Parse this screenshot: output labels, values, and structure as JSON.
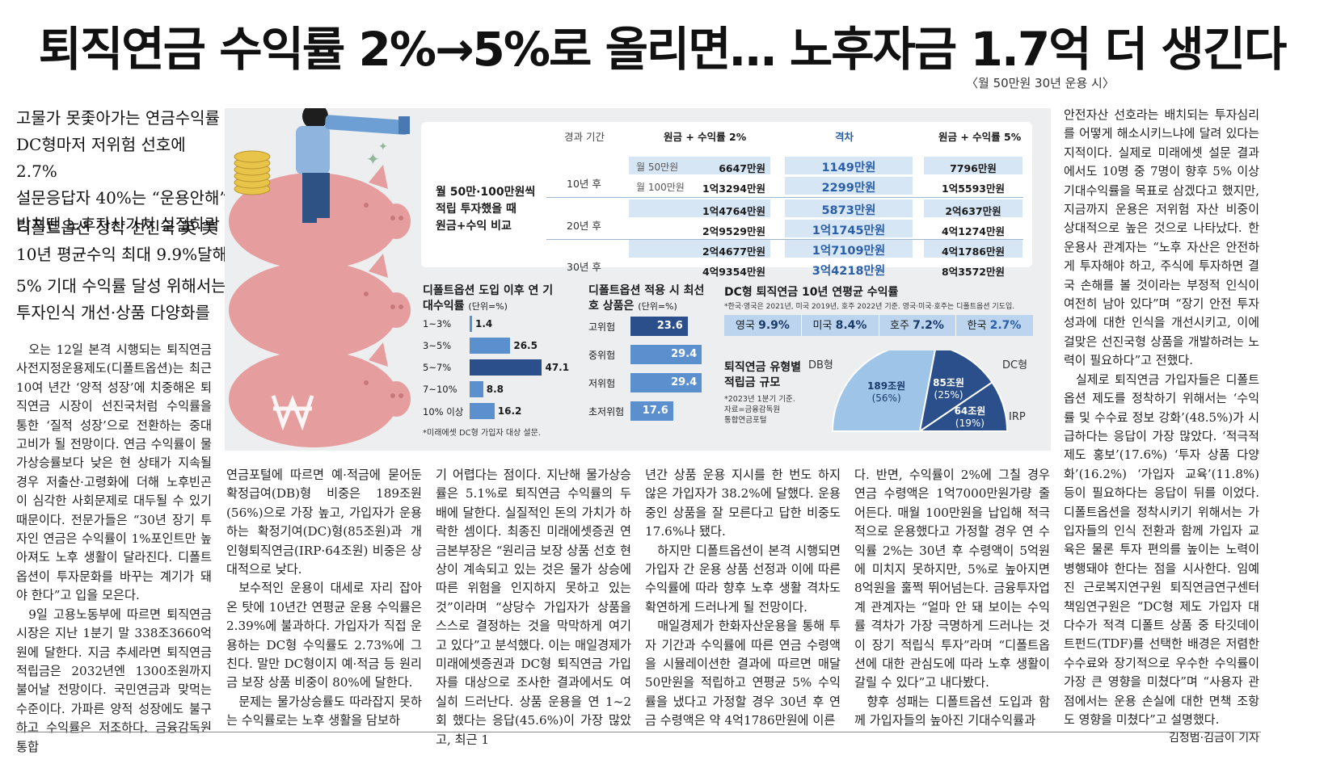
{
  "headline": "퇴직연금 수익률 2%→5%로 올리면… 노후자금 1.7억 더 생긴다",
  "subnote": "〈월 50만원 30년 운용 시〉",
  "deck": [
    "고물가 못좇아가는 연금수익률",
    "DC형마저 저위험 선호에 2.7%",
    "설문응답자 40%는 “운용안해”",
    "방치땐 노후자산가치 실질하락",
    "디폴트옵션 정착 선진국 英·美",
    "10년 평균수익 최대 9.9%달해",
    "5% 기대 수익률 달성 위해서는",
    "투자인식 개선·상품 다양화를"
  ],
  "columns": {
    "c1": [
      "오는 12일 본격 시행되는 퇴직연금 사전지정운용제도(디폴트옵션)는 최근 10여 년간 ‘양적 성장’에 치중해온 퇴직연금 시장이 선진국처럼 수익률을 통한 ‘질적 성장’으로 전환하는 중대 고비가 될 전망이다. 연금 수익률이 물가상승률보다 낮은 현 상태가 지속될 경우 저출산·고령화에 더해 노후빈곤이 심각한 사회문제로 대두될 수 있기 때문이다. 전문가들은 “30년 장기 투자인 연금은 수익률이 1%포인트만 높아져도 노후 생활이 달라진다. 디폴트옵션이 투자문화를 바꾸는 계기가 돼야 한다”고 입을 모은다.",
      "9일 고용노동부에 따르면 퇴직연금 시장은 지난 1분기 말 338조3660억원에 달한다. 지금 추세라면 퇴직연금 적립금은 2032년엔 1300조원까지 불어날 전망이다. 국민연금과 맞먹는 수준이다. 가파른 양적 성장에도 불구하고 수익률은 저조하다. 금융감독원 통합"
    ],
    "c2": [
      "연금포털에 따르면 예·적금에 묻어둔 확정급여(DB)형 비중은 189조원(56%)으로 가장 높고, 가입자가 운용하는 확정기여(DC)형(85조원)과 개인형퇴직연금(IRP·64조원) 비중은 상대적으로 낮다.",
      "보수적인 운용이 대세로 자리 잡아 온 탓에 10년간 연평균 운용 수익률은 2.39%에 불과하다. 가입자가 직접 운용하는 DC형 수익률도 2.73%에 그친다. 말만 DC형이지 예·적금 등 원리금 보장 상품 비중이 80%에 달한다.",
      "문제는 물가상승률도 따라잡지 못하는 수익률로는 노후 생활을 담보하"
    ],
    "c3": [
      "기 어렵다는 점이다. 지난해 물가상승률은 5.1%로 퇴직연금 수익률의 두 배에 달한다. 실질적인 돈의 가치가 하락한 셈이다. 최종진 미래에셋증권 연금본부장은 “원리금 보장 상품 선호 현상이 계속되고 있는 것은 물가 상승에 따른 위험을 인지하지 못하고 있는 것”이라며 “상당수 가입자가 상품을 스스로 결정하는 것을 막막하게 여기고 있다”고 분석했다. 이는 매일경제가 미래에셋증권과 DC형 퇴직연금 가입자를 대상으로 조사한 결과에서도 여실히 드러난다. 상품 운용을 연 1~2회 했다는 응답(45.6%)이 가장 많았고, 최근 1"
    ],
    "c4": [
      "년간 상품 운용 지시를 한 번도 하지 않은 가입자가 38.2%에 달했다. 운용 중인 상품을 잘 모른다고 답한 비중도 17.6%나 됐다.",
      "하지만 디폴트옵션이 본격 시행되면 가입자 간 운용 상품 선정과 이에 따른 수익률에 따라 향후 노후 생활 격차도 확연하게 드러나게 될 전망이다.",
      "매일경제가 한화자산운용을 통해 투자 기간과 수익률에 따른 연금 수령액을 시뮬레이션한 결과에 따르면 매달 50만원을 적립하고 연평균 5% 수익률을 냈다고 가정할 경우 30년 후 연금 수령액은 약 4억1786만원에 이른"
    ],
    "c5": [
      "다. 반면, 수익률이 2%에 그칠 경우 연금 수령액은 1억7000만원가량 줄어든다. 매월 100만원을 납입해 적극적으로 운용했다고 가정할 경우 연 수익률 2%는 30년 후 수령액이 5억원에 미치지 못하지만, 5%로 높아지면 8억원을 훌쩍 뛰어넘는다. 금융투자업계 관계자는 “얼마 안 돼 보이는 수익률 격차가 가장 극명하게 드러나는 것이 장기 적립식 투자”라며 “디폴트옵션에 대한 관심도에 따라 노후 생활이 갈릴 수 있다”고 내다봤다.",
      "향후 성패는 디폴트옵션 도입과 함께 가입자들의 높아진 기대수익률과"
    ],
    "c6": [
      "안전자산 선호라는 배치되는 투자심리를 어떻게 해소시키느냐에 달려 있다는 지적이다. 실제로 미래에셋 설문 결과에서도 10명 중 7명이 향후 5% 이상 기대수익률을 목표로 삼겠다고 했지만, 지금까지 운용은 저위험 자산 비중이 상대적으로 높은 것으로 나타났다. 한 운용사 관계자는 “노후 자산은 안전하게 투자해야 하고, 주식에 투자하면 결국 손해를 볼 것이라는 부정적 인식이 여전히 남아 있다”며 “장기 안전 투자 성과에 대한 인식을 개선시키고, 이에 걸맞은 선진국형 상품을 개발하려는 노력이 필요하다”고 전했다.",
      "실제로 퇴직연금 가입자들은 디폴트옵션 제도를 정착하기 위해서는 ‘수익률 및 수수료 정보 강화’(48.5%)가 시급하다는 응답이 가장 많았다. ‘적극적 제도 홍보’(17.6%) ‘투자 상품 다양화’(16.2%) ‘가입자 교육’(11.8%) 등이 필요하다는 응답이 뒤를 이었다. 디폴트옵션을 정착시키기 위해서는 가입자들의 인식 전환과 함께 가입자 교육은 물론 투자 편의를 높이는 노력이 병행돼야 한다는 점을 시사한다. 임예진 근로복지연구원 퇴직연금연구센터 책임연구원은 “DC형 제도 가입자 대다수가 적격 디폴트 상품 중 타깃데이트펀드(TDF)를 선택한 배경은 저렴한 수수료와 장기적으로 우수한 수익률이 가장 큰 영향을 미쳤다”며 “사용자 관점에서는 운용 손실에 대한 면책 조항도 영향을 미쳤다”고 설명했다."
    ],
    "byline": "김정범·김금이 기자"
  },
  "table": {
    "title": [
      "월 50만·100만원씩",
      "적립 투자했을 때",
      "원금+수익 비교"
    ],
    "headers": [
      "경과 기간",
      "원금 + 수익률 2%",
      "격차",
      "원금 + 수익률 5%"
    ],
    "rows": [
      {
        "period": "10년 후",
        "sub": "월 50만원",
        "r2": "6647만원",
        "gap": "1149만원",
        "r5": "7796만원"
      },
      {
        "period": "",
        "sub": "월 100만원",
        "r2": "1억3294만원",
        "gap": "2299만원",
        "r5": "1억5593만원"
      },
      {
        "period": "20년 후",
        "sub": "",
        "r2": "1억4764만원",
        "gap": "5873만원",
        "r5": "2억637만원"
      },
      {
        "period": "",
        "sub": "",
        "r2": "2억9529만원",
        "gap": "1억1745만원",
        "r5": "4억1274만원"
      },
      {
        "period": "30년 후",
        "sub": "",
        "r2": "2억4677만원",
        "gap": "1억7109만원",
        "r5": "4억1786만원"
      },
      {
        "period": "",
        "sub": "",
        "r2": "4억9354만원",
        "gap": "3억4218만원",
        "r5": "8억3572만원"
      }
    ]
  },
  "chart_data": [
    {
      "type": "bar",
      "title": "디폴트옵션 도입 이후 연 기대수익률",
      "unit": "(단위=%)",
      "orientation": "horizontal",
      "categories": [
        "1~3%",
        "3~5%",
        "5~7%",
        "7~10%",
        "10% 이상"
      ],
      "values": [
        1.4,
        26.5,
        47.1,
        8.8,
        16.2
      ],
      "highlight": "5~7%",
      "note": "*미래에셋 DC형 가입자 대상 설문."
    },
    {
      "type": "bar",
      "title": "디폴트옵션 적용 시 최선호 상품은",
      "unit": "(단위=%)",
      "orientation": "horizontal",
      "categories": [
        "고위험",
        "중위험",
        "저위험",
        "초저위험"
      ],
      "values": [
        23.6,
        29.4,
        29.4,
        17.6
      ]
    },
    {
      "type": "table",
      "title": "DC형 퇴직연금 10년 연평균 수익률",
      "note": "*한국·영국은 2021년, 미국 2019년, 호주 2022년 기준. 영국·미국·호주는 디폴트옵션 기도입.",
      "categories": [
        "영국",
        "미국",
        "호주",
        "한국"
      ],
      "values": [
        9.9,
        8.4,
        7.2,
        2.7
      ],
      "labels": [
        "9.9%",
        "8.4%",
        "7.2%",
        "2.7%"
      ]
    },
    {
      "type": "pie",
      "title": "퇴직연금 유형별 적립금 규모",
      "note": [
        "*2023년 1분기 기준.",
        "자료=금융감독원",
        "통합연금포털"
      ],
      "slices": [
        {
          "name": "DB형",
          "label": "189조원",
          "pct": "(56%)",
          "value": 189
        },
        {
          "name": "DC형",
          "label": "85조원",
          "pct": "(25%)",
          "value": 85
        },
        {
          "name": "IRP",
          "label": "64조원",
          "pct": "(19%)",
          "value": 64
        }
      ]
    }
  ],
  "colors": {
    "accent": "#2a4f8a",
    "bar": "#5b8fce",
    "light": "#d7e6f5",
    "pig": "#e8a6a6",
    "bg": "#eceeef"
  }
}
